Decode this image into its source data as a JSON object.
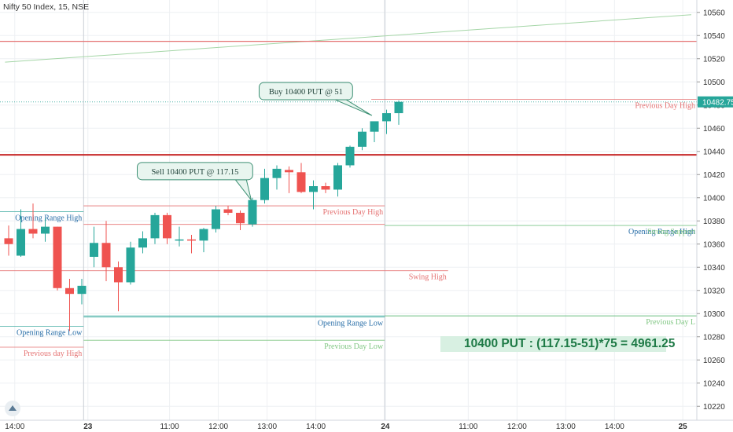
{
  "header": {
    "symbol_title": "Nifty 50 Index, 15, NSE"
  },
  "pl_box": {
    "text": "10400 PUT : (117.15-51)*75 = 4961.25"
  },
  "colors": {
    "up": "#26a69a",
    "down": "#ef5350",
    "up_fill": "#26a69a",
    "resistance": "#c62828",
    "red_line": "#e57373",
    "green_line": "#81c784",
    "teal_line": "#4fb3a9",
    "blue_label": "#2a6fa8",
    "trend": "#a5d6a7",
    "grid": "#eef0f3"
  },
  "chart_data": {
    "type": "candlestick",
    "title": "Nifty 50 Index, 15, NSE",
    "ylim": [
      10210,
      10570
    ],
    "y_ticks": [
      10220,
      10240,
      10260,
      10280,
      10300,
      10320,
      10340,
      10360,
      10380,
      10400,
      10420,
      10440,
      10460,
      10480,
      10500,
      10520,
      10540,
      10560
    ],
    "x_ticks": [
      {
        "label": "14:00",
        "bar": 0.5
      },
      {
        "label": "23",
        "bar": 6.5
      },
      {
        "label": "11:00",
        "bar": 13.2
      },
      {
        "label": "12:00",
        "bar": 17.2
      },
      {
        "label": "13:00",
        "bar": 21.2
      },
      {
        "label": "14:00",
        "bar": 25.2
      },
      {
        "label": "24",
        "bar": 30.9
      },
      {
        "label": "11:00",
        "bar": 37.7
      },
      {
        "label": "12:00",
        "bar": 41.7
      },
      {
        "label": "13:00",
        "bar": 45.7
      },
      {
        "label": "14:00",
        "bar": 49.7
      },
      {
        "label": "25",
        "bar": 55.3
      }
    ],
    "candles": [
      {
        "o": 10365,
        "h": 10376,
        "l": 10350,
        "c": 10360
      },
      {
        "o": 10350,
        "h": 10390,
        "l": 10349,
        "c": 10373
      },
      {
        "o": 10373,
        "h": 10395,
        "l": 10365,
        "c": 10369
      },
      {
        "o": 10369,
        "h": 10382,
        "l": 10362,
        "c": 10375
      },
      {
        "o": 10375,
        "h": 10375,
        "l": 10320,
        "c": 10322
      },
      {
        "o": 10322,
        "h": 10330,
        "l": 10285,
        "c": 10317
      },
      {
        "o": 10317,
        "h": 10330,
        "l": 10308,
        "c": 10324
      },
      {
        "o": 10349,
        "h": 10375,
        "l": 10340,
        "c": 10361
      },
      {
        "o": 10361,
        "h": 10380,
        "l": 10328,
        "c": 10340
      },
      {
        "o": 10340,
        "h": 10345,
        "l": 10302,
        "c": 10327
      },
      {
        "o": 10327,
        "h": 10362,
        "l": 10325,
        "c": 10357
      },
      {
        "o": 10357,
        "h": 10371,
        "l": 10352,
        "c": 10365
      },
      {
        "o": 10365,
        "h": 10387,
        "l": 10360,
        "c": 10385
      },
      {
        "o": 10385,
        "h": 10387,
        "l": 10360,
        "c": 10365
      },
      {
        "o": 10364,
        "h": 10375,
        "l": 10358,
        "c": 10364
      },
      {
        "o": 10364,
        "h": 10368,
        "l": 10352,
        "c": 10363
      },
      {
        "o": 10363,
        "h": 10374,
        "l": 10353,
        "c": 10373
      },
      {
        "o": 10373,
        "h": 10393,
        "l": 10370,
        "c": 10390
      },
      {
        "o": 10390,
        "h": 10393,
        "l": 10385,
        "c": 10387
      },
      {
        "o": 10387,
        "h": 10389,
        "l": 10372,
        "c": 10378
      },
      {
        "o": 10377,
        "h": 10400,
        "l": 10375,
        "c": 10398
      },
      {
        "o": 10398,
        "h": 10425,
        "l": 10395,
        "c": 10417
      },
      {
        "o": 10417,
        "h": 10428,
        "l": 10407,
        "c": 10425
      },
      {
        "o": 10424,
        "h": 10427,
        "l": 10404,
        "c": 10422
      },
      {
        "o": 10422,
        "h": 10430,
        "l": 10404,
        "c": 10405
      },
      {
        "o": 10405,
        "h": 10415,
        "l": 10390,
        "c": 10410
      },
      {
        "o": 10410,
        "h": 10413,
        "l": 10404,
        "c": 10407
      },
      {
        "o": 10407,
        "h": 10430,
        "l": 10401,
        "c": 10428
      },
      {
        "o": 10428,
        "h": 10445,
        "l": 10426,
        "c": 10444
      },
      {
        "o": 10444,
        "h": 10460,
        "l": 10441,
        "c": 10457
      },
      {
        "o": 10457,
        "h": 10465,
        "l": 10448,
        "c": 10466
      },
      {
        "o": 10466,
        "h": 10476,
        "l": 10455,
        "c": 10473
      },
      {
        "o": 10473,
        "h": 10484,
        "l": 10463,
        "c": 10482.75
      }
    ],
    "hlines": [
      {
        "kind": "resistance",
        "y": 10535,
        "x0": 0,
        "x1": 56
      },
      {
        "kind": "resistance-thick",
        "y": 10437,
        "x0": 0,
        "x1": 56
      },
      {
        "kind": "teal-dotted",
        "y": 10482.75,
        "x0": 0,
        "x1": 56
      },
      {
        "kind": "red-thin",
        "y": 10393,
        "x0": 6.6,
        "x1": 31.3,
        "label": "Previous Day High",
        "label_pos": "right"
      },
      {
        "kind": "red-thin",
        "y": 10377,
        "x0": 6.6,
        "x1": 31.3
      },
      {
        "kind": "teal",
        "y": 10376,
        "x0": 31.3,
        "x1": 56,
        "label": "Opening Range High",
        "label_pos": "left-end"
      },
      {
        "kind": "green",
        "y": 10376,
        "x0": 31.3,
        "x1": 56,
        "label": "Strong Support",
        "label_pos": "right"
      },
      {
        "kind": "red-thin",
        "y": 10337,
        "x0": 0,
        "x1": 36.5,
        "label": "Swing High",
        "label_pos": "right"
      },
      {
        "kind": "teal",
        "y": 10298,
        "x0": 6.6,
        "x1": 56
      },
      {
        "kind": "green",
        "y": 10298,
        "x0": 31.3,
        "x1": 56,
        "label": "Previous Day L",
        "label_pos": "right"
      },
      {
        "kind": "teal",
        "y": 10297,
        "x0": 6.6,
        "x1": 31.3,
        "label": "Opening Range  Low",
        "label_pos": "right"
      },
      {
        "kind": "green",
        "y": 10277,
        "x0": 6.6,
        "x1": 31.3,
        "label": "Previous Day Low",
        "label_pos": "right"
      },
      {
        "kind": "teal",
        "y": 10388,
        "x0": 0,
        "x1": 6.6,
        "label": "Opening Range High",
        "label_pos": "right"
      },
      {
        "kind": "teal",
        "y": 10289,
        "x0": 0,
        "x1": 6.6,
        "label": "Opening Range  Low",
        "label_pos": "right"
      },
      {
        "kind": "red-thin",
        "y": 10271,
        "x0": 0,
        "x1": 6.6,
        "label": "Previous day High",
        "label_pos": "right"
      },
      {
        "kind": "red-thin",
        "y": 10485,
        "x0": 30.2,
        "x1": 56,
        "label": "Previous Day High",
        "label_pos": "right"
      }
    ],
    "trendline": {
      "x0": -0.3,
      "y0": 10517,
      "x1": 56,
      "y1": 10558
    },
    "callouts": [
      {
        "text": "Sell 10400 PUT @ 117.15",
        "bar": 19.9,
        "price": 10398,
        "box_bar": 11,
        "box_price": 10423
      },
      {
        "text": "Buy 10400 PUT @ 51",
        "bar": 29.8,
        "price": 10471,
        "box_bar": 21,
        "box_price": 10492
      }
    ],
    "last_price": "10482.75"
  }
}
